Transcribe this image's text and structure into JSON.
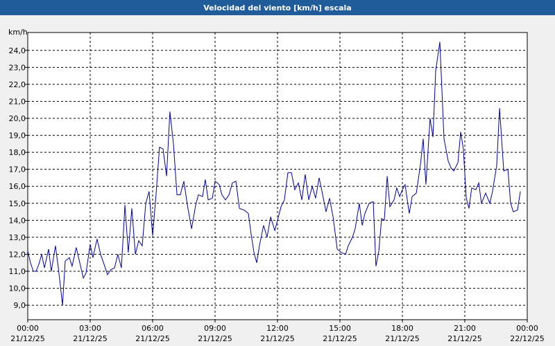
{
  "chart_data": {
    "type": "line",
    "title": "Velocidad del viento [km/h] escala",
    "y_unit": "km/h",
    "x": [
      0,
      0.13,
      0.27,
      0.4,
      0.53,
      0.67,
      0.8,
      1,
      1.13,
      1.33,
      1.47,
      1.67,
      1.8,
      2,
      2.13,
      2.33,
      2.5,
      2.67,
      2.8,
      3,
      3.13,
      3.33,
      3.5,
      3.67,
      3.83,
      4,
      4.17,
      4.33,
      4.5,
      4.67,
      4.83,
      5,
      5.17,
      5.33,
      5.5,
      5.67,
      5.83,
      6,
      6.17,
      6.33,
      6.5,
      6.67,
      6.83,
      7,
      7.17,
      7.33,
      7.5,
      7.67,
      7.87,
      8.07,
      8.2,
      8.4,
      8.53,
      8.67,
      8.87,
      9,
      9.2,
      9.33,
      9.5,
      9.67,
      9.83,
      10,
      10.17,
      10.4,
      10.6,
      10.73,
      10.87,
      11,
      11.13,
      11.33,
      11.5,
      11.67,
      11.87,
      12,
      12.17,
      12.33,
      12.5,
      12.67,
      12.83,
      13,
      13.17,
      13.33,
      13.5,
      13.67,
      13.83,
      14,
      14.17,
      14.33,
      14.5,
      14.67,
      14.87,
      15.07,
      15.27,
      15.4,
      15.6,
      15.73,
      15.93,
      16.07,
      16.2,
      16.4,
      16.6,
      16.73,
      16.87,
      17,
      17.13,
      17.27,
      17.4,
      17.6,
      17.73,
      17.87,
      18,
      18.13,
      18.33,
      18.47,
      18.67,
      18.87,
      19,
      19.13,
      19.33,
      19.47,
      19.6,
      19.8,
      20,
      20.2,
      20.33,
      20.47,
      20.67,
      20.8,
      20.93,
      21.07,
      21.2,
      21.33,
      21.53,
      21.67,
      21.8,
      22,
      22.2,
      22.33,
      22.53,
      22.67,
      22.87,
      23.07,
      23.2,
      23.33,
      23.53,
      23.67
    ],
    "series": [
      {
        "name": "Velocidad del viento",
        "color": "#0000a0",
        "values": [
          12.2,
          11.5,
          11.0,
          11.0,
          11.4,
          12.0,
          11.2,
          12.3,
          11.0,
          12.5,
          11.2,
          9.0,
          11.6,
          11.8,
          11.3,
          12.4,
          11.5,
          10.6,
          10.9,
          12.6,
          11.8,
          12.9,
          12.0,
          11.4,
          10.8,
          11.1,
          11.2,
          12.0,
          11.2,
          14.9,
          12.1,
          14.7,
          12.0,
          12.8,
          12.5,
          15.0,
          15.7,
          13.1,
          15.6,
          18.3,
          18.2,
          16.6,
          20.4,
          18.5,
          15.5,
          15.5,
          16.3,
          14.9,
          13.5,
          14.9,
          15.5,
          15.4,
          16.4,
          15.2,
          15.3,
          16.3,
          16.1,
          15.5,
          15.2,
          15.5,
          16.2,
          16.3,
          14.7,
          14.6,
          14.4,
          13.2,
          12.1,
          11.5,
          12.5,
          13.7,
          13.0,
          14.2,
          13.4,
          14.0,
          14.8,
          15.2,
          16.8,
          16.8,
          15.8,
          16.2,
          15.2,
          16.7,
          15.2,
          16.0,
          15.3,
          16.5,
          15.5,
          14.5,
          15.3,
          14.2,
          12.3,
          12.1,
          12.0,
          12.5,
          13.0,
          13.5,
          15.0,
          13.7,
          14.4,
          15.0,
          15.1,
          11.3,
          12.2,
          14.1,
          14.0,
          16.6,
          14.8,
          15.2,
          15.9,
          15.4,
          15.8,
          16.1,
          14.4,
          15.4,
          15.6,
          17.3,
          18.8,
          16.1,
          20.0,
          18.9,
          22.8,
          24.5,
          18.8,
          17.5,
          17.1,
          16.9,
          17.4,
          19.2,
          18.2,
          15.3,
          14.7,
          15.9,
          15.8,
          16.2,
          15.0,
          15.6,
          15.0,
          15.7,
          17.2,
          20.6,
          16.9,
          17.0,
          15.0,
          14.5,
          14.6,
          15.7
        ]
      }
    ],
    "xlim": [
      0,
      24
    ],
    "xticks": [
      {
        "value": 0,
        "label": [
          "00:00",
          "21/12/25"
        ]
      },
      {
        "value": 3,
        "label": [
          "03:00",
          "21/12/25"
        ]
      },
      {
        "value": 6,
        "label": [
          "06:00",
          "21/12/25"
        ]
      },
      {
        "value": 9,
        "label": [
          "09:00",
          "21/12/25"
        ]
      },
      {
        "value": 12,
        "label": [
          "12:00",
          "21/12/25"
        ]
      },
      {
        "value": 15,
        "label": [
          "15:00",
          "21/12/25"
        ]
      },
      {
        "value": 18,
        "label": [
          "18:00",
          "21/12/25"
        ]
      },
      {
        "value": 21,
        "label": [
          "21:00",
          "21/12/25"
        ]
      },
      {
        "value": 24,
        "label": [
          "00:00",
          "22/12/25"
        ]
      }
    ],
    "ylim": [
      8.15,
      25.05
    ],
    "yticks": [
      {
        "value": 9,
        "label": "9,0"
      },
      {
        "value": 10,
        "label": "10,0"
      },
      {
        "value": 11,
        "label": "11,0"
      },
      {
        "value": 12,
        "label": "12,0"
      },
      {
        "value": 13,
        "label": "13,0"
      },
      {
        "value": 14,
        "label": "14,0"
      },
      {
        "value": 15,
        "label": "15,0"
      },
      {
        "value": 16,
        "label": "16,0"
      },
      {
        "value": 17,
        "label": "17,0"
      },
      {
        "value": 18,
        "label": "18,0"
      },
      {
        "value": 19,
        "label": "19,0"
      },
      {
        "value": 20,
        "label": "20,0"
      },
      {
        "value": 21,
        "label": "21,0"
      },
      {
        "value": 22,
        "label": "22,0"
      },
      {
        "value": 23,
        "label": "23,0"
      },
      {
        "value": 24,
        "label": "24,0"
      }
    ],
    "grid": true
  }
}
